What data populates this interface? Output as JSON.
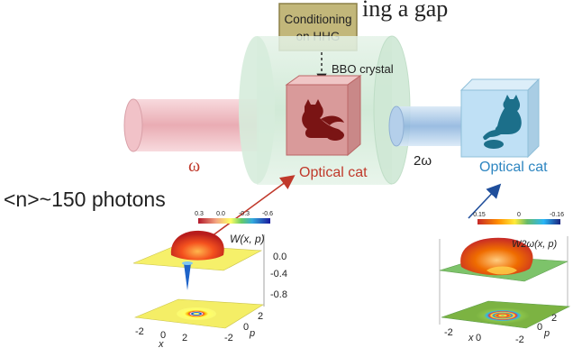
{
  "top_text": "ing a gap",
  "conditioning_box": {
    "line1": "Conditioning",
    "line2": "on HHG"
  },
  "crystal_label": "BBO crystal",
  "input_beam_label": "ω",
  "output_beam_label": "2ω",
  "optical_cat_left": "Optical cat",
  "optical_cat_right": "Optical cat",
  "photon_number": "<n>~150 photons",
  "plot_left": {
    "function_label": "W(x, p)",
    "colorbar_ticks": [
      "0.3",
      "0.0",
      "-0.3",
      "-0.6"
    ],
    "z_ticks": [
      "0.0",
      "-0.4",
      "-0.8"
    ],
    "x_ticks": [
      "-2",
      "0",
      "2"
    ],
    "p_ticks": [
      "-2",
      "0",
      "2"
    ],
    "x_label": "x",
    "p_label": "p"
  },
  "plot_right": {
    "function_label": "W2ω(x, p)",
    "colorbar_ticks": [
      "0.15",
      "0",
      "-0.16"
    ],
    "x_ticks": [
      "-2",
      "0"
    ],
    "p_ticks": [
      "-2",
      "0",
      "2"
    ],
    "x_label": "x",
    "p_label": "p"
  },
  "colors": {
    "input_beam": "#e8a8b0",
    "output_beam": "#9ebfe0",
    "green_cylinder": "#cfe9d6",
    "red_cube": "#d99a9a",
    "blue_cube": "#bfe0f5",
    "cat_red": "#7a1414",
    "cat_blue": "#1c6f8a",
    "label_red": "#c0392b",
    "label_blue": "#2e86c1",
    "cond_box": "#c2b77a"
  }
}
